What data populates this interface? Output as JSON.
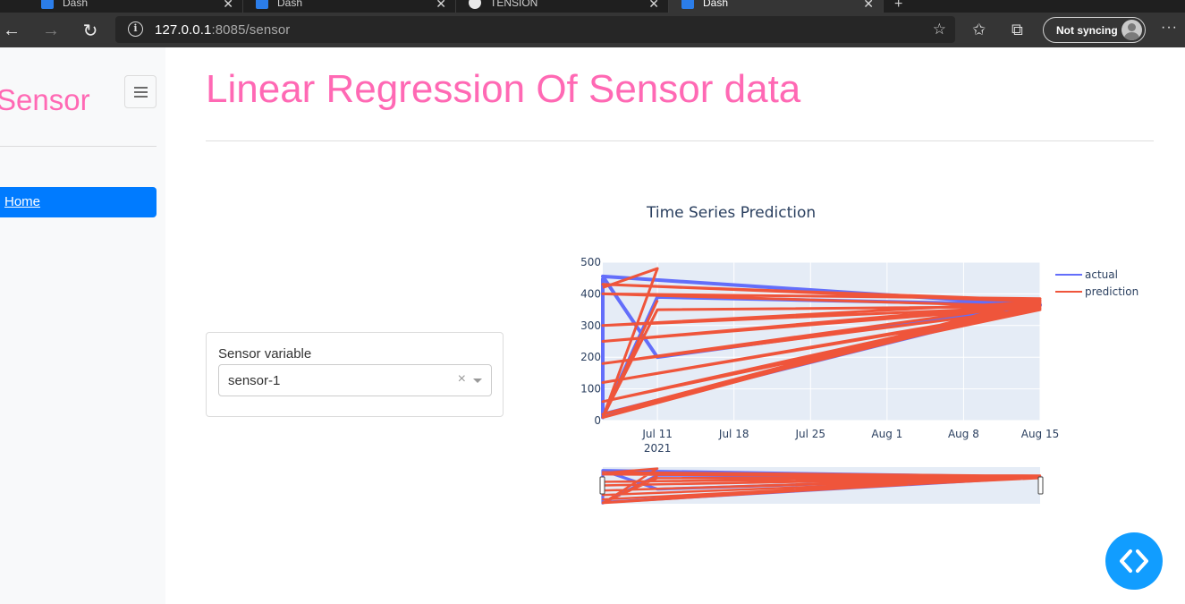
{
  "browser": {
    "tabs": [
      {
        "label": "Dash"
      },
      {
        "label": "Dash"
      },
      {
        "label": "TENSION"
      },
      {
        "label": "Dash"
      }
    ],
    "url_host": "127.0.0.1",
    "url_rest": ":8085/sensor",
    "sync_label": "Not syncing"
  },
  "sidebar": {
    "brand": "Sensor",
    "nav_items": [
      {
        "label": "Home"
      }
    ]
  },
  "main": {
    "title": "Linear Regression Of Sensor data",
    "control": {
      "label": "Sensor variable",
      "selected": "sensor-1",
      "clear_glyph": "×"
    }
  },
  "colors": {
    "brand_pink": "#ff69b4",
    "nav_active": "#007bff",
    "actual": "#636efa",
    "prediction": "#ef553b",
    "plot_bg": "#e5ecf6",
    "fab": "#119dff"
  },
  "chart_data": {
    "type": "line",
    "title": "Time Series Prediction",
    "x_axis": {
      "type": "date",
      "range": [
        "2021-07-06",
        "2021-08-15"
      ],
      "ticks": [
        "2021-07-11",
        "2021-07-18",
        "2021-07-25",
        "2021-08-01",
        "2021-08-08",
        "2021-08-15"
      ],
      "tick_labels": [
        "Jul 11",
        "Jul 18",
        "Jul 25",
        "Aug 1",
        "Aug 8",
        "Aug 15"
      ],
      "year_label": "2021"
    },
    "y_axis": {
      "range": [
        0,
        500
      ],
      "ticks": [
        0,
        100,
        200,
        300,
        400,
        500
      ]
    },
    "legend": {
      "position": "top-right",
      "entries": [
        "actual",
        "prediction"
      ]
    },
    "grid": true,
    "range_slider": true,
    "series": [
      {
        "name": "actual",
        "x": [
          "2021-07-06",
          "2021-07-06",
          "2021-07-11",
          "2021-08-15",
          "2021-07-06",
          "2021-07-11",
          "2021-08-15",
          "2021-07-06",
          "2021-08-15"
        ],
        "y": [
          450,
          10,
          390,
          365,
          455,
          200,
          365,
          20,
          370
        ]
      },
      {
        "name": "prediction",
        "x": [
          "2021-07-06",
          "2021-07-11",
          "2021-07-06",
          "2021-08-15",
          "2021-07-06",
          "2021-08-15",
          "2021-07-06",
          "2021-08-15",
          "2021-07-06",
          "2021-08-15",
          "2021-07-06",
          "2021-08-15",
          "2021-07-06",
          "2021-08-15",
          "2021-07-06",
          "2021-08-15",
          "2021-07-06",
          "2021-08-15",
          "2021-07-06",
          "2021-08-15",
          "2021-07-11",
          "2021-07-06",
          "2021-07-11"
        ],
        "y": [
          420,
          480,
          10,
          380,
          430,
          375,
          300,
          360,
          250,
          370,
          180,
          355,
          120,
          350,
          60,
          365,
          20,
          385,
          400,
          360,
          350,
          10,
          380
        ]
      }
    ]
  }
}
